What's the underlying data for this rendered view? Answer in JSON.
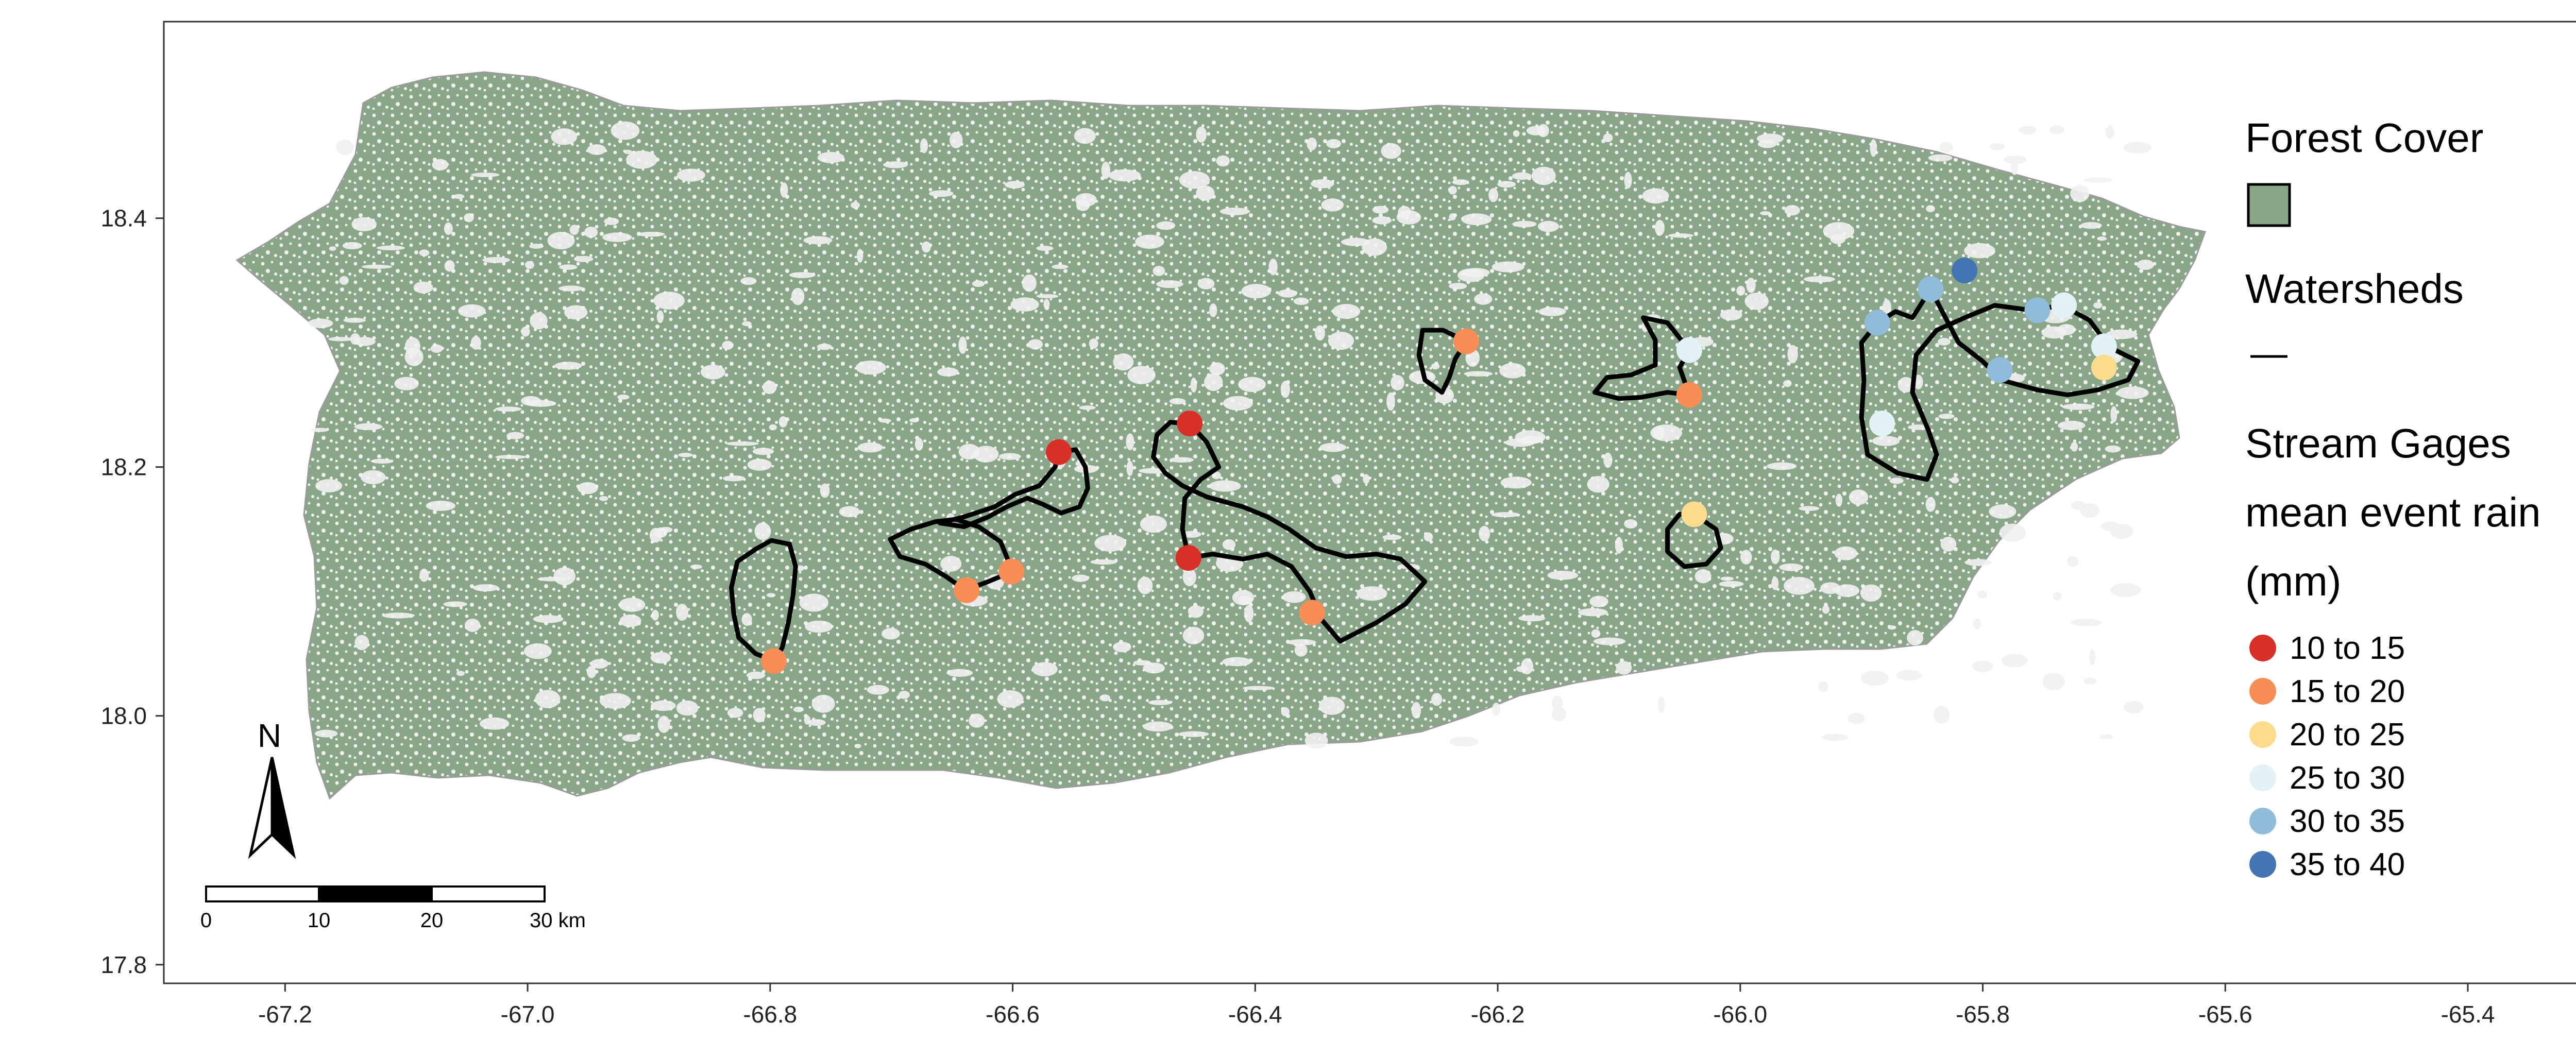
{
  "map": {
    "x_axis": {
      "ticks": [
        {
          "value": -67.2,
          "label": "-67.2"
        },
        {
          "value": -67.0,
          "label": "-67.0"
        },
        {
          "value": -66.8,
          "label": "-66.8"
        },
        {
          "value": -66.6,
          "label": "-66.6"
        },
        {
          "value": -66.4,
          "label": "-66.4"
        },
        {
          "value": -66.2,
          "label": "-66.2"
        },
        {
          "value": -66.0,
          "label": "-66.0"
        },
        {
          "value": -65.8,
          "label": "-65.8"
        },
        {
          "value": -65.6,
          "label": "-65.6"
        },
        {
          "value": -65.4,
          "label": "-65.4"
        }
      ],
      "range": [
        -67.3,
        -65.27
      ]
    },
    "y_axis": {
      "ticks": [
        {
          "value": 18.4,
          "label": "18.4"
        },
        {
          "value": 18.2,
          "label": "18.2"
        },
        {
          "value": 18.0,
          "label": "18.0"
        },
        {
          "value": 17.8,
          "label": "17.8"
        }
      ],
      "range": [
        17.785,
        18.558
      ]
    },
    "colors": {
      "forest": "#8aa688",
      "land": "#f1f1f1",
      "watershed": "#000000"
    },
    "legend": {
      "forest_title": "Forest Cover",
      "watersheds_title": "Watersheds",
      "gages_title_lines": [
        "Stream Gages",
        "mean event rain",
        "(mm)"
      ],
      "classes": [
        {
          "label": "10 to 15",
          "color": "#d73027"
        },
        {
          "label": "15 to 20",
          "color": "#f88d56"
        },
        {
          "label": "20 to 25",
          "color": "#fcdc8c"
        },
        {
          "label": "25 to 30",
          "color": "#e2f2f7"
        },
        {
          "label": "30 to 35",
          "color": "#90bcd9"
        },
        {
          "label": "35 to 40",
          "color": "#4574b4"
        }
      ]
    },
    "north_arrow": {
      "label": "N"
    },
    "scale_bar": {
      "labels": [
        "0",
        "10",
        "20",
        "30 km"
      ]
    },
    "gages": [
      {
        "lon": -66.797,
        "lat": 18.044,
        "class": 1
      },
      {
        "lon": -66.638,
        "lat": 18.101,
        "class": 1
      },
      {
        "lon": -66.601,
        "lat": 18.116,
        "class": 1
      },
      {
        "lon": -66.562,
        "lat": 18.212,
        "class": 0
      },
      {
        "lon": -66.454,
        "lat": 18.235,
        "class": 0
      },
      {
        "lon": -66.455,
        "lat": 18.127,
        "class": 0
      },
      {
        "lon": -66.353,
        "lat": 18.083,
        "class": 1
      },
      {
        "lon": -66.226,
        "lat": 18.301,
        "class": 1
      },
      {
        "lon": -66.042,
        "lat": 18.294,
        "class": 3
      },
      {
        "lon": -66.042,
        "lat": 18.258,
        "class": 1
      },
      {
        "lon": -66.038,
        "lat": 18.162,
        "class": 2
      },
      {
        "lon": -65.887,
        "lat": 18.316,
        "class": 4
      },
      {
        "lon": -65.843,
        "lat": 18.343,
        "class": 4
      },
      {
        "lon": -65.815,
        "lat": 18.358,
        "class": 5
      },
      {
        "lon": -65.755,
        "lat": 18.326,
        "class": 4
      },
      {
        "lon": -65.733,
        "lat": 18.33,
        "class": 3
      },
      {
        "lon": -65.7,
        "lat": 18.297,
        "class": 3
      },
      {
        "lon": -65.786,
        "lat": 18.278,
        "class": 4
      },
      {
        "lon": -65.883,
        "lat": 18.235,
        "class": 3
      },
      {
        "lon": -65.7,
        "lat": 18.28,
        "class": 2
      }
    ],
    "watersheds": [
      [
        [
          -66.796,
          18.044
        ],
        [
          -66.812,
          18.05
        ],
        [
          -66.826,
          18.063
        ],
        [
          -66.83,
          18.082
        ],
        [
          -66.832,
          18.103
        ],
        [
          -66.827,
          18.124
        ],
        [
          -66.812,
          18.134
        ],
        [
          -66.799,
          18.141
        ],
        [
          -66.784,
          18.138
        ],
        [
          -66.779,
          18.12
        ],
        [
          -66.781,
          18.098
        ],
        [
          -66.785,
          18.075
        ],
        [
          -66.79,
          18.055
        ],
        [
          -66.796,
          18.044
        ]
      ],
      [
        [
          -66.6,
          18.116
        ],
        [
          -66.61,
          18.14
        ],
        [
          -66.628,
          18.152
        ],
        [
          -66.647,
          18.158
        ],
        [
          -66.664,
          18.156
        ],
        [
          -66.684,
          18.15
        ],
        [
          -66.701,
          18.142
        ],
        [
          -66.693,
          18.128
        ],
        [
          -66.672,
          18.122
        ],
        [
          -66.655,
          18.112
        ],
        [
          -66.639,
          18.101
        ],
        [
          -66.62,
          18.108
        ],
        [
          -66.6,
          18.116
        ]
      ],
      [
        [
          -66.562,
          18.212
        ],
        [
          -66.548,
          18.214
        ],
        [
          -66.54,
          18.2
        ],
        [
          -66.538,
          18.183
        ],
        [
          -66.545,
          18.168
        ],
        [
          -66.56,
          18.163
        ],
        [
          -66.575,
          18.17
        ],
        [
          -66.588,
          18.175
        ],
        [
          -66.605,
          18.168
        ],
        [
          -66.62,
          18.16
        ],
        [
          -66.64,
          18.152
        ],
        [
          -66.66,
          18.155
        ],
        [
          -66.64,
          18.16
        ],
        [
          -66.615,
          18.168
        ],
        [
          -66.598,
          18.178
        ],
        [
          -66.578,
          18.185
        ],
        [
          -66.565,
          18.2
        ],
        [
          -66.562,
          18.212
        ]
      ],
      [
        [
          -66.454,
          18.235
        ],
        [
          -66.47,
          18.236
        ],
        [
          -66.481,
          18.226
        ],
        [
          -66.484,
          18.208
        ],
        [
          -66.474,
          18.195
        ],
        [
          -66.46,
          18.185
        ],
        [
          -66.44,
          18.176
        ],
        [
          -66.41,
          18.168
        ],
        [
          -66.39,
          18.16
        ],
        [
          -66.372,
          18.15
        ],
        [
          -66.35,
          18.135
        ],
        [
          -66.325,
          18.128
        ],
        [
          -66.3,
          18.13
        ],
        [
          -66.28,
          18.126
        ],
        [
          -66.26,
          18.108
        ],
        [
          -66.276,
          18.09
        ],
        [
          -66.3,
          18.075
        ],
        [
          -66.33,
          18.06
        ],
        [
          -66.345,
          18.077
        ],
        [
          -66.355,
          18.1
        ],
        [
          -66.37,
          18.12
        ],
        [
          -66.39,
          18.13
        ],
        [
          -66.41,
          18.126
        ],
        [
          -66.435,
          18.13
        ],
        [
          -66.455,
          18.127
        ],
        [
          -66.46,
          18.15
        ],
        [
          -66.458,
          18.175
        ],
        [
          -66.445,
          18.19
        ],
        [
          -66.43,
          18.2
        ],
        [
          -66.44,
          18.22
        ],
        [
          -66.454,
          18.235
        ]
      ],
      [
        [
          -66.226,
          18.301
        ],
        [
          -66.245,
          18.31
        ],
        [
          -66.262,
          18.31
        ],
        [
          -66.265,
          18.29
        ],
        [
          -66.26,
          18.27
        ],
        [
          -66.246,
          18.26
        ],
        [
          -66.24,
          18.272
        ],
        [
          -66.235,
          18.287
        ],
        [
          -66.226,
          18.301
        ]
      ],
      [
        [
          -66.042,
          18.258
        ],
        [
          -66.06,
          18.26
        ],
        [
          -66.082,
          18.256
        ],
        [
          -66.1,
          18.255
        ],
        [
          -66.12,
          18.26
        ],
        [
          -66.11,
          18.272
        ],
        [
          -66.09,
          18.274
        ],
        [
          -66.07,
          18.282
        ],
        [
          -66.07,
          18.302
        ],
        [
          -66.08,
          18.32
        ],
        [
          -66.06,
          18.316
        ],
        [
          -66.042,
          18.294
        ],
        [
          -66.05,
          18.28
        ],
        [
          -66.042,
          18.258
        ]
      ],
      [
        [
          -66.038,
          18.162
        ],
        [
          -66.02,
          18.15
        ],
        [
          -66.016,
          18.135
        ],
        [
          -66.028,
          18.122
        ],
        [
          -66.046,
          18.12
        ],
        [
          -66.06,
          18.132
        ],
        [
          -66.06,
          18.15
        ],
        [
          -66.05,
          18.162
        ],
        [
          -66.038,
          18.162
        ]
      ],
      [
        [
          -65.887,
          18.316
        ],
        [
          -65.9,
          18.3
        ],
        [
          -65.898,
          18.27
        ],
        [
          -65.9,
          18.24
        ],
        [
          -65.895,
          18.21
        ],
        [
          -65.87,
          18.195
        ],
        [
          -65.846,
          18.19
        ],
        [
          -65.838,
          18.21
        ],
        [
          -65.845,
          18.23
        ],
        [
          -65.858,
          18.26
        ],
        [
          -65.855,
          18.29
        ],
        [
          -65.838,
          18.31
        ],
        [
          -65.815,
          18.32
        ],
        [
          -65.79,
          18.33
        ],
        [
          -65.76,
          18.326
        ],
        [
          -65.735,
          18.33
        ],
        [
          -65.712,
          18.318
        ],
        [
          -65.695,
          18.296
        ],
        [
          -65.672,
          18.285
        ],
        [
          -65.68,
          18.27
        ],
        [
          -65.705,
          18.262
        ],
        [
          -65.73,
          18.258
        ],
        [
          -65.755,
          18.262
        ],
        [
          -65.785,
          18.27
        ],
        [
          -65.8,
          18.285
        ],
        [
          -65.82,
          18.3
        ],
        [
          -65.843,
          18.343
        ],
        [
          -65.858,
          18.32
        ],
        [
          -65.872,
          18.325
        ],
        [
          -65.887,
          18.316
        ]
      ]
    ]
  }
}
